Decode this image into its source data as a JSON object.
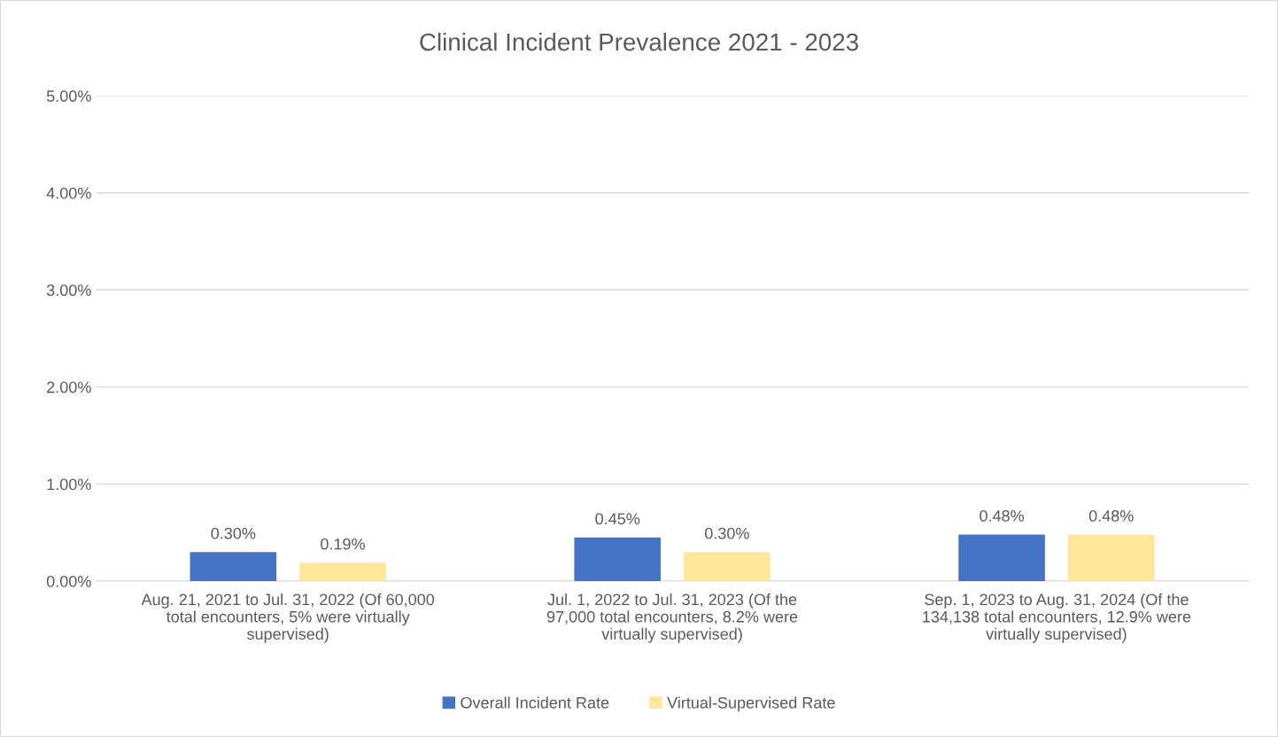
{
  "chart_data": {
    "type": "bar",
    "title": "Clinical Incident Prevalence 2021 - 2023",
    "categories": [
      "Aug. 21, 2021 to Jul. 31, 2022 (Of 60,000 total encounters, 5% were virtually supervised)",
      "Jul. 1, 2022 to Jul. 31, 2023 (Of the 97,000 total encounters, 8.2% were virtually supervised)",
      "Sep. 1, 2023 to Aug. 31, 2024 (Of the 134,138 total encounters, 12.9% were virtually supervised)"
    ],
    "series": [
      {
        "name": "Overall Incident Rate",
        "color": "#4472c4",
        "values": [
          0.3,
          0.45,
          0.48
        ],
        "value_labels": [
          "0.30%",
          "0.45%",
          "0.48%"
        ]
      },
      {
        "name": "Virtual-Supervised Rate",
        "color": "#ffe699",
        "values": [
          0.19,
          0.3,
          0.48
        ],
        "value_labels": [
          "0.19%",
          "0.30%",
          "0.48%"
        ]
      }
    ],
    "ylim": [
      0,
      5
    ],
    "yticks": [
      {
        "value": 0,
        "label": "0.00%"
      },
      {
        "value": 1,
        "label": "1.00%"
      },
      {
        "value": 2,
        "label": "2.00%"
      },
      {
        "value": 3,
        "label": "3.00%"
      },
      {
        "value": 4,
        "label": "4.00%"
      },
      {
        "value": 5,
        "label": "5.00%"
      }
    ],
    "grid": "y",
    "legend": "bottom"
  }
}
